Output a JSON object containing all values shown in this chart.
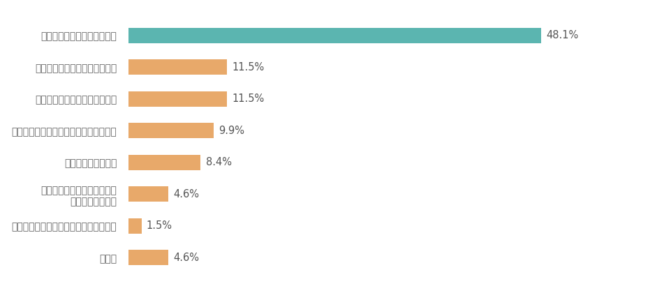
{
  "categories": [
    "一人の時間が少なかったから",
    "細かい頼まれごとが増えたから",
    "電話や会議の声がうるさいから",
    "自宅にいるのに家事をしてくれないから",
    "部屋が散らかるから",
    "自宅にいるのに子供の世話を\nしてくれないから",
    "部下や同僚に対する態度が良くないから",
    "その他"
  ],
  "values": [
    48.1,
    11.5,
    11.5,
    9.9,
    8.4,
    4.6,
    1.5,
    4.6
  ],
  "labels": [
    "48.1%",
    "11.5%",
    "11.5%",
    "9.9%",
    "8.4%",
    "4.6%",
    "1.5%",
    "4.6%"
  ],
  "bar_colors": [
    "#5BB5B0",
    "#E8A96A",
    "#E8A96A",
    "#E8A96A",
    "#E8A96A",
    "#E8A96A",
    "#E8A96A",
    "#E8A96A"
  ],
  "background_color": "#ffffff",
  "text_color": "#636363",
  "label_color": "#555555",
  "figsize": [
    9.62,
    4.2
  ],
  "dpi": 100,
  "xlim_max": 62,
  "bar_height": 0.48,
  "label_fontsize": 10.5,
  "tick_fontsize": 10
}
